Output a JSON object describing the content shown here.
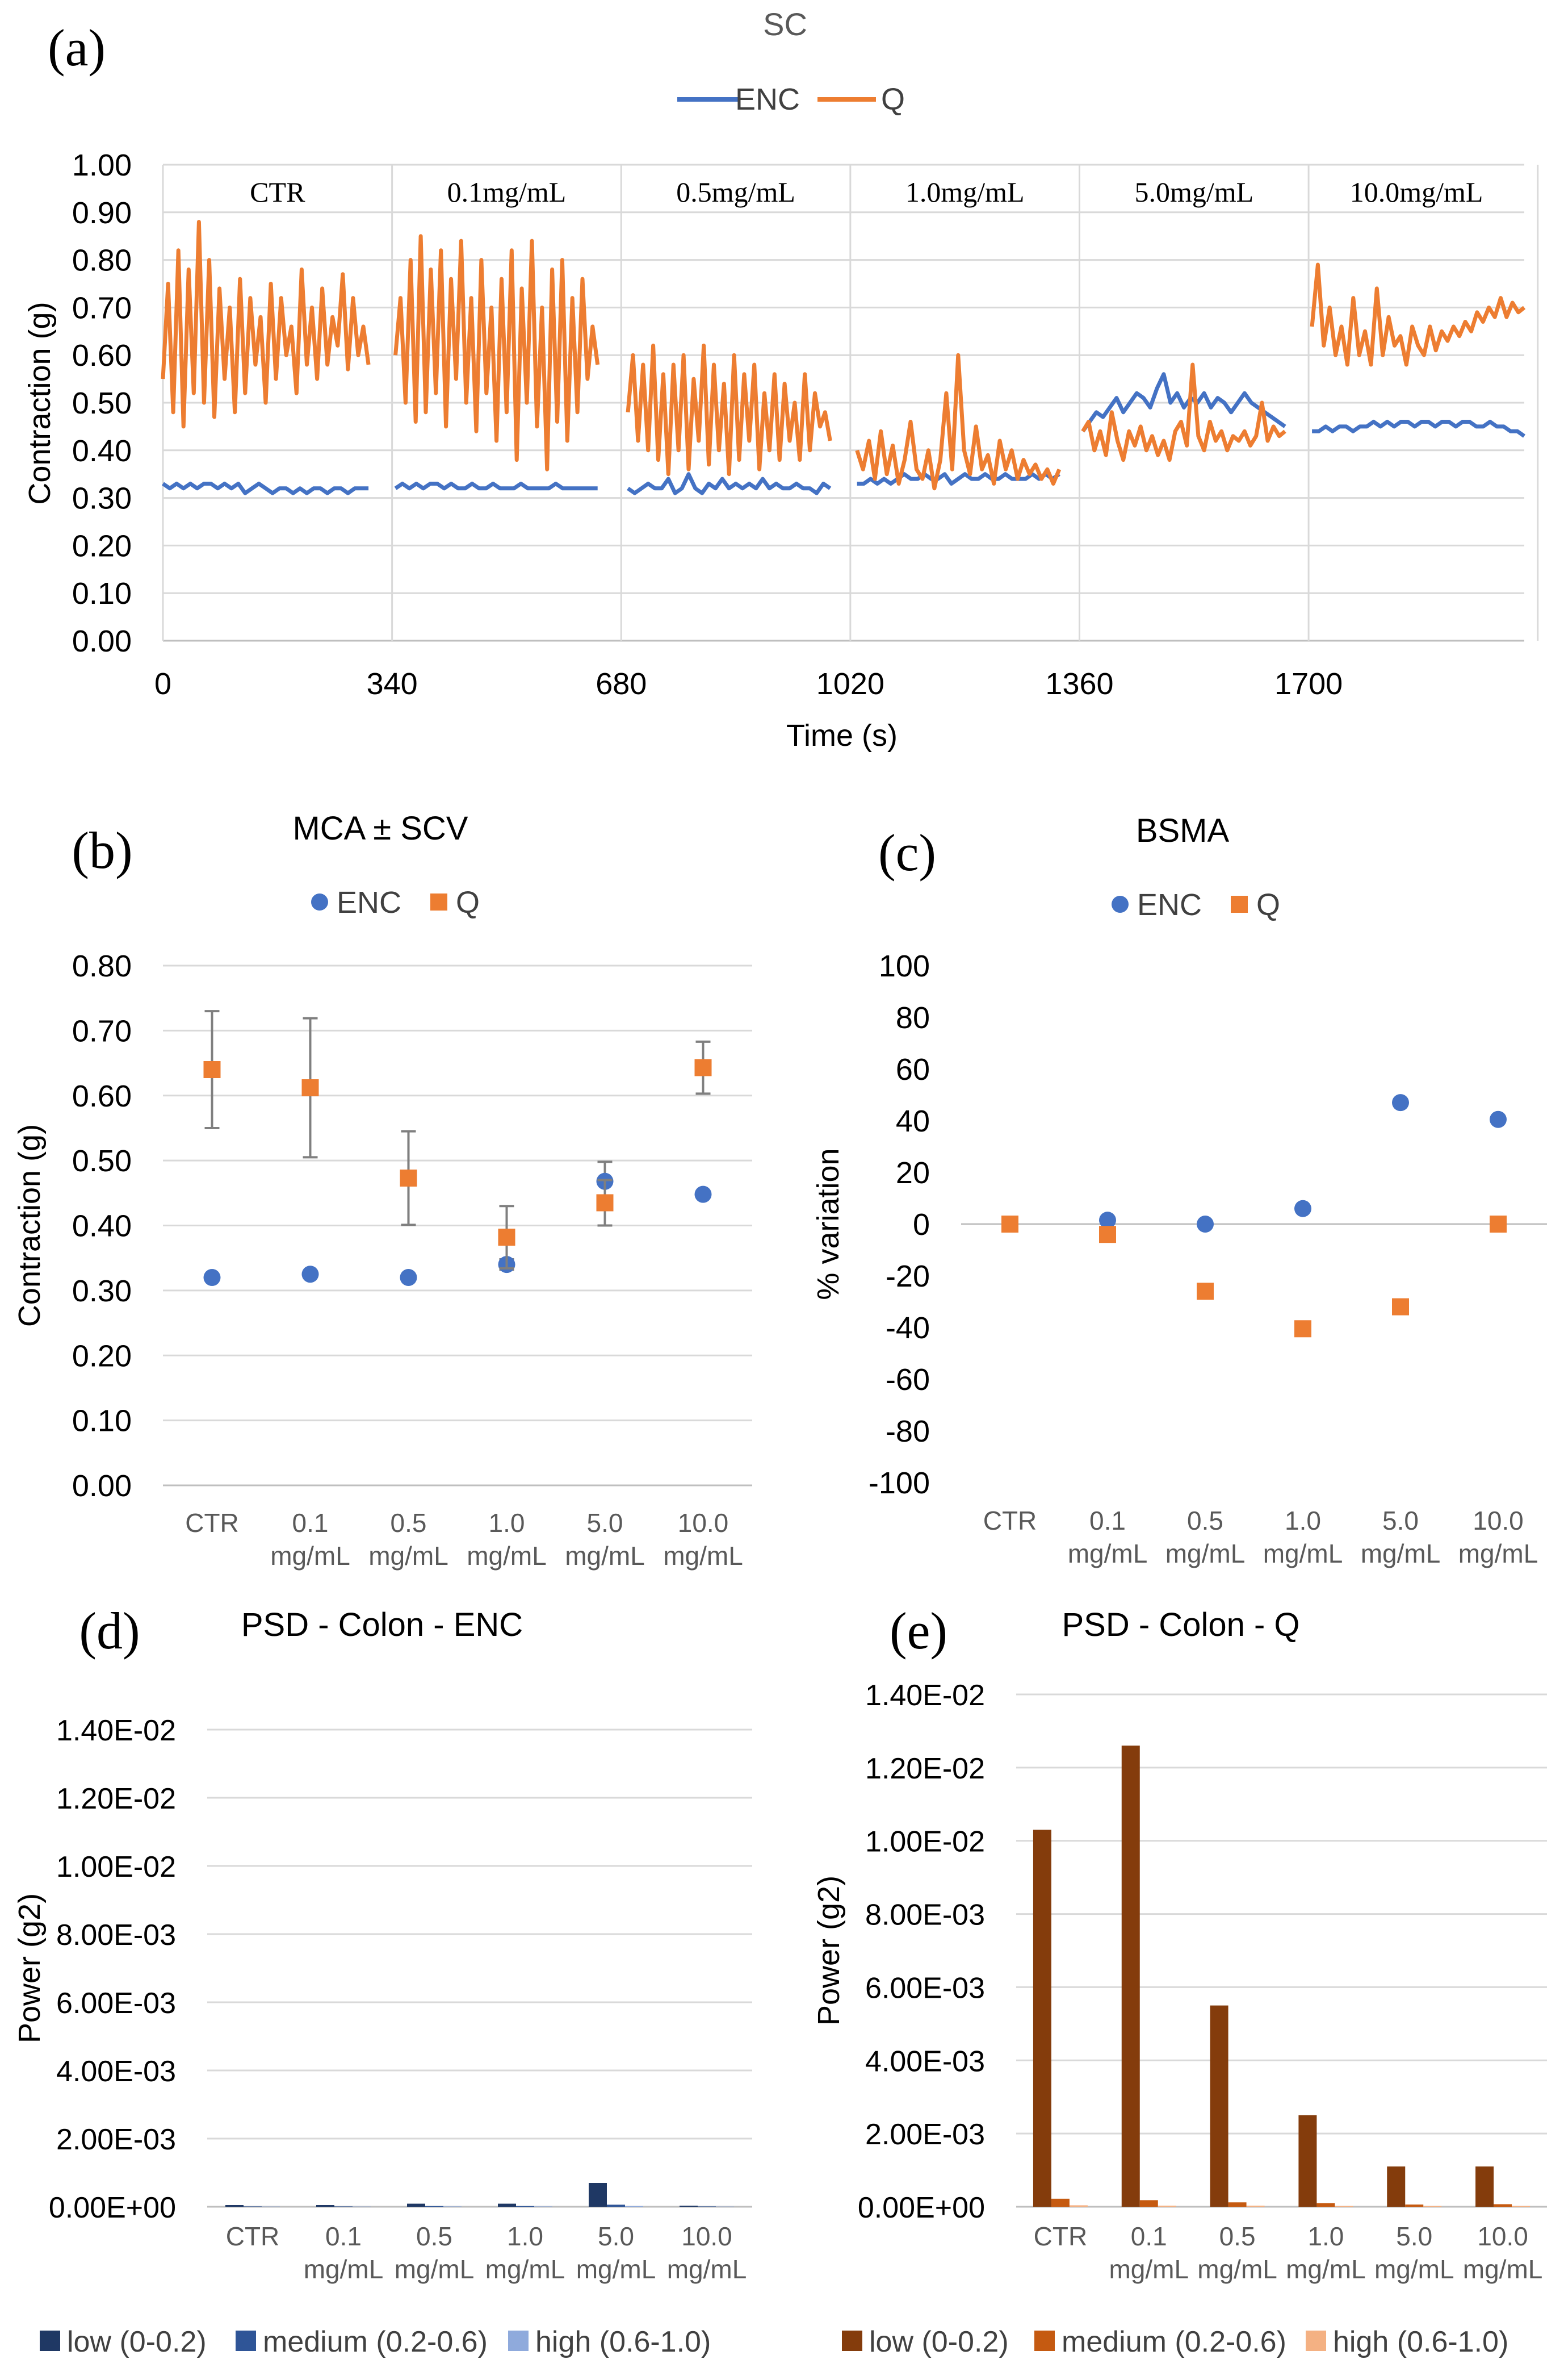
{
  "colors": {
    "enc": "#4472C4",
    "q": "#ED7D31",
    "grid": "#d9d9d9",
    "axis": "#bfbfbf",
    "text": "#595959",
    "err": "#7f7f7f",
    "psd_enc": [
      "#1F3864",
      "#2F5597",
      "#8FAADC"
    ],
    "psd_q": [
      "#843C0C",
      "#C55A11",
      "#F4B183"
    ]
  },
  "chart_data": [
    {
      "id": "a",
      "panel_letter": "(a)",
      "type": "line",
      "title": "SC",
      "xlabel": "Time (s)",
      "ylabel": "Contraction (g)",
      "xlim": [
        0,
        2020
      ],
      "ylim": [
        0,
        1
      ],
      "x_ticks": [
        "0",
        "340",
        "680",
        "1020",
        "1360",
        "1700"
      ],
      "y_ticks": [
        "0.00",
        "0.10",
        "0.20",
        "0.30",
        "0.40",
        "0.50",
        "0.60",
        "0.70",
        "0.80",
        "0.90",
        "1.00"
      ],
      "segments": [
        "CTR",
        "0.1mg/mL",
        "0.5mg/mL",
        "1.0mg/mL",
        "5.0mg/mL",
        "10.0mg/mL"
      ],
      "legend": [
        "ENC",
        "Q"
      ],
      "legend_position": "top",
      "grid": true,
      "series": [
        {
          "name": "ENC",
          "segments": [
            {
              "start": 0,
              "end": 305,
              "values": [
                0.33,
                0.32,
                0.33,
                0.32,
                0.33,
                0.32,
                0.33,
                0.33,
                0.32,
                0.33,
                0.32,
                0.33,
                0.31,
                0.32,
                0.33,
                0.32,
                0.31,
                0.32,
                0.32,
                0.31,
                0.32,
                0.31,
                0.32,
                0.32,
                0.31,
                0.32,
                0.32,
                0.31,
                0.32,
                0.32,
                0.32
              ]
            },
            {
              "start": 345,
              "end": 645,
              "values": [
                0.32,
                0.33,
                0.32,
                0.33,
                0.32,
                0.33,
                0.33,
                0.32,
                0.33,
                0.32,
                0.32,
                0.33,
                0.32,
                0.32,
                0.33,
                0.32,
                0.32,
                0.32,
                0.33,
                0.32,
                0.32,
                0.32,
                0.32,
                0.33,
                0.32,
                0.32,
                0.32,
                0.32,
                0.32,
                0.32
              ]
            },
            {
              "start": 690,
              "end": 990,
              "values": [
                0.32,
                0.31,
                0.32,
                0.33,
                0.32,
                0.32,
                0.34,
                0.31,
                0.32,
                0.35,
                0.32,
                0.31,
                0.33,
                0.32,
                0.34,
                0.32,
                0.33,
                0.32,
                0.33,
                0.32,
                0.34,
                0.32,
                0.33,
                0.32,
                0.32,
                0.33,
                0.32,
                0.32,
                0.31,
                0.33,
                0.32
              ]
            },
            {
              "start": 1030,
              "end": 1330,
              "values": [
                0.33,
                0.33,
                0.34,
                0.33,
                0.34,
                0.33,
                0.34,
                0.35,
                0.34,
                0.34,
                0.35,
                0.34,
                0.34,
                0.35,
                0.33,
                0.34,
                0.35,
                0.34,
                0.34,
                0.35,
                0.34,
                0.34,
                0.35,
                0.34,
                0.34,
                0.34,
                0.35,
                0.34,
                0.35,
                0.34,
                0.35
              ]
            },
            {
              "start": 1365,
              "end": 1665,
              "values": [
                0.44,
                0.46,
                0.48,
                0.47,
                0.49,
                0.51,
                0.48,
                0.5,
                0.52,
                0.51,
                0.49,
                0.53,
                0.56,
                0.5,
                0.52,
                0.49,
                0.51,
                0.5,
                0.52,
                0.49,
                0.51,
                0.5,
                0.48,
                0.5,
                0.52,
                0.5,
                0.49,
                0.48,
                0.47,
                0.46,
                0.45
              ]
            },
            {
              "start": 1705,
              "end": 2020,
              "values": [
                0.44,
                0.44,
                0.45,
                0.44,
                0.45,
                0.45,
                0.44,
                0.45,
                0.45,
                0.46,
                0.45,
                0.46,
                0.45,
                0.46,
                0.46,
                0.45,
                0.46,
                0.46,
                0.45,
                0.46,
                0.46,
                0.45,
                0.46,
                0.46,
                0.45,
                0.45,
                0.46,
                0.45,
                0.45,
                0.44,
                0.44,
                0.43
              ]
            }
          ]
        },
        {
          "name": "Q",
          "segments": [
            {
              "start": 0,
              "end": 305,
              "values": [
                0.55,
                0.75,
                0.48,
                0.82,
                0.45,
                0.78,
                0.52,
                0.88,
                0.5,
                0.8,
                0.47,
                0.74,
                0.55,
                0.7,
                0.48,
                0.76,
                0.52,
                0.72,
                0.58,
                0.68,
                0.5,
                0.75,
                0.55,
                0.72,
                0.6,
                0.66,
                0.52,
                0.78,
                0.58,
                0.7,
                0.55,
                0.74,
                0.58,
                0.68,
                0.62,
                0.77,
                0.57,
                0.72,
                0.6,
                0.66,
                0.58
              ]
            },
            {
              "start": 345,
              "end": 645,
              "values": [
                0.6,
                0.72,
                0.5,
                0.8,
                0.46,
                0.85,
                0.48,
                0.78,
                0.52,
                0.82,
                0.45,
                0.76,
                0.55,
                0.84,
                0.5,
                0.72,
                0.44,
                0.8,
                0.52,
                0.7,
                0.42,
                0.76,
                0.48,
                0.82,
                0.38,
                0.74,
                0.5,
                0.84,
                0.45,
                0.7,
                0.36,
                0.78,
                0.46,
                0.8,
                0.42,
                0.72,
                0.48,
                0.76,
                0.55,
                0.66,
                0.58
              ]
            },
            {
              "start": 690,
              "end": 990,
              "values": [
                0.48,
                0.6,
                0.42,
                0.58,
                0.4,
                0.62,
                0.38,
                0.56,
                0.35,
                0.58,
                0.4,
                0.6,
                0.36,
                0.55,
                0.42,
                0.62,
                0.37,
                0.58,
                0.4,
                0.54,
                0.35,
                0.6,
                0.38,
                0.56,
                0.42,
                0.58,
                0.36,
                0.52,
                0.4,
                0.56,
                0.38,
                0.54,
                0.42,
                0.5,
                0.38,
                0.56,
                0.4,
                0.52,
                0.45,
                0.48,
                0.42
              ]
            },
            {
              "start": 1030,
              "end": 1330,
              "values": [
                0.4,
                0.36,
                0.42,
                0.34,
                0.44,
                0.35,
                0.41,
                0.33,
                0.38,
                0.46,
                0.36,
                0.34,
                0.4,
                0.32,
                0.38,
                0.52,
                0.36,
                0.6,
                0.4,
                0.35,
                0.45,
                0.36,
                0.39,
                0.33,
                0.42,
                0.36,
                0.4,
                0.34,
                0.38,
                0.35,
                0.37,
                0.34,
                0.36,
                0.33,
                0.36
              ]
            },
            {
              "start": 1365,
              "end": 1665,
              "values": [
                0.44,
                0.46,
                0.4,
                0.44,
                0.39,
                0.48,
                0.42,
                0.38,
                0.44,
                0.41,
                0.45,
                0.4,
                0.43,
                0.39,
                0.42,
                0.38,
                0.44,
                0.46,
                0.41,
                0.58,
                0.43,
                0.4,
                0.46,
                0.42,
                0.44,
                0.4,
                0.43,
                0.42,
                0.44,
                0.41,
                0.43,
                0.5,
                0.42,
                0.45,
                0.43,
                0.44
              ]
            },
            {
              "start": 1705,
              "end": 2020,
              "values": [
                0.66,
                0.79,
                0.62,
                0.7,
                0.6,
                0.66,
                0.58,
                0.72,
                0.6,
                0.65,
                0.58,
                0.74,
                0.6,
                0.68,
                0.62,
                0.64,
                0.58,
                0.66,
                0.62,
                0.6,
                0.66,
                0.61,
                0.65,
                0.63,
                0.66,
                0.64,
                0.67,
                0.65,
                0.69,
                0.67,
                0.7,
                0.68,
                0.72,
                0.68,
                0.71,
                0.69,
                0.7
              ]
            }
          ]
        }
      ]
    },
    {
      "id": "b",
      "panel_letter": "(b)",
      "type": "scatter",
      "title": "MCA ± SCV",
      "ylabel": "Contraction (g)",
      "ylim": [
        0,
        0.8
      ],
      "y_ticks": [
        "0.00",
        "0.10",
        "0.20",
        "0.30",
        "0.40",
        "0.50",
        "0.60",
        "0.70",
        "0.80"
      ],
      "categories": [
        [
          "CTR"
        ],
        [
          "0.1",
          "mg/mL"
        ],
        [
          "0.5",
          "mg/mL"
        ],
        [
          "1.0",
          "mg/mL"
        ],
        [
          "5.0",
          "mg/mL"
        ],
        [
          "10.0",
          "mg/mL"
        ]
      ],
      "legend": [
        "ENC",
        "Q"
      ],
      "legend_position": "top",
      "grid": true,
      "series": [
        {
          "name": "ENC",
          "values": [
            0.32,
            0.325,
            0.32,
            0.34,
            0.468,
            0.448
          ],
          "error": [
            0,
            0,
            0,
            0.008,
            0.03,
            0
          ]
        },
        {
          "name": "Q",
          "values": [
            0.64,
            0.612,
            0.473,
            0.382,
            0.435,
            0.643
          ],
          "error": [
            0.09,
            0.107,
            0.072,
            0.048,
            0.035,
            0.04
          ]
        }
      ]
    },
    {
      "id": "c",
      "panel_letter": "(c)",
      "type": "scatter",
      "title": "BSMA",
      "ylabel": "% variation",
      "ylim": [
        -100,
        100
      ],
      "y_ticks": [
        "-100",
        "-80",
        "-60",
        "-40",
        "-20",
        "0",
        "20",
        "40",
        "60",
        "80",
        "100"
      ],
      "categories": [
        [
          "CTR"
        ],
        [
          "0.1",
          "mg/mL"
        ],
        [
          "0.5",
          "mg/mL"
        ],
        [
          "1.0",
          "mg/mL"
        ],
        [
          "5.0",
          "mg/mL"
        ],
        [
          "10.0",
          "mg/mL"
        ]
      ],
      "legend": [
        "ENC",
        "Q"
      ],
      "legend_position": "top",
      "grid": false,
      "series": [
        {
          "name": "ENC",
          "values": [
            0,
            1.5,
            0,
            6,
            47,
            40.5
          ]
        },
        {
          "name": "Q",
          "values": [
            0,
            -4,
            -26,
            -40.5,
            -32,
            0
          ]
        }
      ]
    },
    {
      "id": "d",
      "panel_letter": "(d)",
      "type": "bar",
      "title": "PSD - Colon - ENC",
      "ylabel": "Power (g2)",
      "ylim": [
        0,
        0.014
      ],
      "y_ticks": [
        "0.00E+00",
        "2.00E-03",
        "4.00E-03",
        "6.00E-03",
        "8.00E-03",
        "1.00E-02",
        "1.20E-02",
        "1.40E-02"
      ],
      "categories": [
        [
          "CTR"
        ],
        [
          "0.1",
          "mg/mL"
        ],
        [
          "0.5",
          "mg/mL"
        ],
        [
          "1.0",
          "mg/mL"
        ],
        [
          "5.0",
          "mg/mL"
        ],
        [
          "10.0",
          "mg/mL"
        ]
      ],
      "legend_position": "bottom",
      "grid": true,
      "series": [
        {
          "name": "low (0-0.2)",
          "values": [
            5e-05,
            5e-05,
            9e-05,
            9e-05,
            0.0007,
            3e-05
          ]
        },
        {
          "name": "medium (0.2-0.6)",
          "values": [
            1e-05,
            1e-05,
            2e-05,
            2e-05,
            6e-05,
            1e-05
          ]
        },
        {
          "name": "high (0.6-1.0)",
          "values": [
            5e-06,
            5e-06,
            1e-05,
            1e-05,
            2e-05,
            5e-06
          ]
        }
      ]
    },
    {
      "id": "e",
      "panel_letter": "(e)",
      "type": "bar",
      "title": "PSD - Colon - Q",
      "ylabel": "Power (g2)",
      "ylim": [
        0,
        0.014
      ],
      "y_ticks": [
        "0.00E+00",
        "2.00E-03",
        "4.00E-03",
        "6.00E-03",
        "8.00E-03",
        "1.00E-02",
        "1.20E-02",
        "1.40E-02"
      ],
      "categories": [
        [
          "CTR"
        ],
        [
          "0.1",
          "mg/mL"
        ],
        [
          "0.5",
          "mg/mL"
        ],
        [
          "1.0",
          "mg/mL"
        ],
        [
          "5.0",
          "mg/mL"
        ],
        [
          "10.0",
          "mg/mL"
        ]
      ],
      "legend_position": "bottom",
      "grid": true,
      "series": [
        {
          "name": "low (0-0.2)",
          "values": [
            0.0103,
            0.0126,
            0.0055,
            0.0025,
            0.0011,
            0.0011
          ]
        },
        {
          "name": "medium (0.2-0.6)",
          "values": [
            0.00022,
            0.00018,
            0.00012,
            0.0001,
            6e-05,
            7e-05
          ]
        },
        {
          "name": "high (0.6-1.0)",
          "values": [
            4e-05,
            3e-05,
            3e-05,
            2e-05,
            2e-05,
            2e-05
          ]
        }
      ]
    }
  ]
}
